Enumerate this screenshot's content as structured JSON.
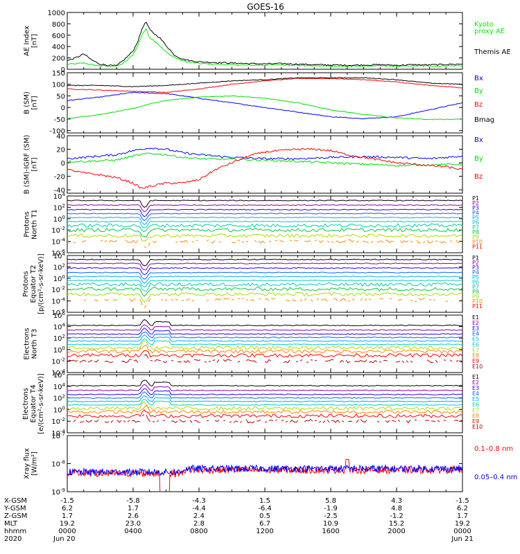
{
  "title": "GOES-16",
  "colors": {
    "black": "#000000",
    "red": "#ff0000",
    "green": "#00dd00",
    "blue": "#0000ff",
    "kyoto": "#00ee00"
  },
  "chart_data": [
    {
      "type": "line",
      "panel": "ae",
      "ylabel": [
        "AE Index",
        "[nT]"
      ],
      "yticks": [
        "1000",
        "800",
        "600",
        "400",
        "200",
        "0"
      ],
      "ylim": [
        0,
        1000
      ],
      "series": [
        {
          "name": "Kyoto proxy AE",
          "color": "#00ee00",
          "legend": [
            "Kyoto",
            "proxy AE"
          ],
          "points": [
            [
              0,
              90
            ],
            [
              0.5,
              95
            ],
            [
              1,
              110
            ],
            [
              1.5,
              80
            ],
            [
              2,
              60
            ],
            [
              2.5,
              55
            ],
            [
              3,
              50
            ],
            [
              3.5,
              120
            ],
            [
              4,
              260
            ],
            [
              4.3,
              420
            ],
            [
              4.6,
              650
            ],
            [
              4.8,
              700
            ],
            [
              5,
              560
            ],
            [
              5.3,
              500
            ],
            [
              5.6,
              420
            ],
            [
              6,
              300
            ],
            [
              6.5,
              210
            ],
            [
              7,
              150
            ],
            [
              7.5,
              120
            ],
            [
              8,
              100
            ],
            [
              9,
              90
            ],
            [
              10,
              80
            ],
            [
              11,
              70
            ],
            [
              12,
              75
            ],
            [
              13,
              80
            ],
            [
              14,
              70
            ],
            [
              15,
              60
            ],
            [
              16,
              55
            ],
            [
              17,
              50
            ],
            [
              18,
              55
            ],
            [
              19,
              60
            ],
            [
              20,
              50
            ],
            [
              21,
              60
            ],
            [
              22,
              55
            ],
            [
              23,
              60
            ],
            [
              24,
              60
            ]
          ]
        },
        {
          "name": "Themis AE",
          "color": "#000000",
          "legend": [
            "Themis AE"
          ],
          "points": [
            [
              0,
              150
            ],
            [
              0.5,
              200
            ],
            [
              1,
              270
            ],
            [
              1.5,
              160
            ],
            [
              2,
              90
            ],
            [
              2.5,
              70
            ],
            [
              3,
              60
            ],
            [
              3.5,
              180
            ],
            [
              4,
              320
            ],
            [
              4.3,
              500
            ],
            [
              4.6,
              760
            ],
            [
              4.8,
              830
            ],
            [
              5,
              700
            ],
            [
              5.3,
              620
            ],
            [
              5.6,
              560
            ],
            [
              6,
              420
            ],
            [
              6.5,
              250
            ],
            [
              7,
              180
            ],
            [
              7.5,
              150
            ],
            [
              8,
              130
            ],
            [
              9,
              120
            ],
            [
              10,
              110
            ],
            [
              11,
              100
            ],
            [
              12,
              95
            ],
            [
              13,
              100
            ],
            [
              14,
              90
            ],
            [
              15,
              80
            ],
            [
              16,
              75
            ],
            [
              17,
              70
            ],
            [
              18,
              75
            ],
            [
              19,
              80
            ],
            [
              20,
              70
            ],
            [
              21,
              80
            ],
            [
              22,
              75
            ],
            [
              23,
              85
            ],
            [
              24,
              90
            ]
          ]
        }
      ]
    },
    {
      "type": "line",
      "panel": "b",
      "ylabel": [
        "B (SM)",
        "[nT]"
      ],
      "yticks": [
        "150",
        "100",
        "50",
        "0",
        "-50",
        "-100"
      ],
      "ylim": [
        -110,
        150
      ],
      "series": [
        {
          "name": "Bx",
          "color": "#0000ff",
          "points": [
            [
              0,
              30
            ],
            [
              2,
              45
            ],
            [
              4,
              65
            ],
            [
              6,
              60
            ],
            [
              8,
              40
            ],
            [
              10,
              20
            ],
            [
              12,
              0
            ],
            [
              14,
              -20
            ],
            [
              16,
              -40
            ],
            [
              18,
              -48
            ],
            [
              20,
              -40
            ],
            [
              22,
              -10
            ],
            [
              24,
              20
            ]
          ]
        },
        {
          "name": "By",
          "color": "#00dd00",
          "points": [
            [
              0,
              -48
            ],
            [
              2,
              -30
            ],
            [
              4,
              -5
            ],
            [
              5,
              15
            ],
            [
              6,
              30
            ],
            [
              8,
              45
            ],
            [
              10,
              50
            ],
            [
              12,
              40
            ],
            [
              14,
              20
            ],
            [
              16,
              -10
            ],
            [
              18,
              -30
            ],
            [
              20,
              -45
            ],
            [
              22,
              -52
            ],
            [
              24,
              -50
            ]
          ]
        },
        {
          "name": "Bz",
          "color": "#ff0000",
          "points": [
            [
              0,
              80
            ],
            [
              2,
              75
            ],
            [
              4,
              70
            ],
            [
              6,
              65
            ],
            [
              8,
              80
            ],
            [
              10,
              100
            ],
            [
              12,
              115
            ],
            [
              14,
              125
            ],
            [
              16,
              125
            ],
            [
              18,
              120
            ],
            [
              20,
              110
            ],
            [
              22,
              95
            ],
            [
              24,
              85
            ]
          ]
        },
        {
          "name": "Bmag",
          "color": "#000000",
          "points": [
            [
              0,
              95
            ],
            [
              2,
              95
            ],
            [
              4,
              90
            ],
            [
              6,
              95
            ],
            [
              8,
              105
            ],
            [
              10,
              115
            ],
            [
              12,
              120
            ],
            [
              14,
              128
            ],
            [
              16,
              128
            ],
            [
              18,
              128
            ],
            [
              20,
              120
            ],
            [
              22,
              105
            ],
            [
              24,
              100
            ]
          ]
        }
      ]
    },
    {
      "type": "line",
      "panel": "db",
      "ylabel": [
        "B (SM)-IGRF (SM)",
        "[nT]"
      ],
      "yticks": [
        "40",
        "20",
        "0",
        "-20",
        "-40"
      ],
      "ylim": [
        -45,
        40
      ],
      "series": [
        {
          "name": "Bx",
          "color": "#0000ff",
          "points": [
            [
              0,
              6
            ],
            [
              1,
              8
            ],
            [
              2,
              10
            ],
            [
              3,
              12
            ],
            [
              4,
              18
            ],
            [
              5,
              22
            ],
            [
              6,
              20
            ],
            [
              7,
              15
            ],
            [
              8,
              12
            ],
            [
              10,
              8
            ],
            [
              12,
              6
            ],
            [
              14,
              6
            ],
            [
              16,
              8
            ],
            [
              18,
              9
            ],
            [
              20,
              8
            ],
            [
              22,
              6
            ],
            [
              24,
              10
            ]
          ]
        },
        {
          "name": "By",
          "color": "#00dd00",
          "points": [
            [
              0,
              2
            ],
            [
              1,
              2
            ],
            [
              2,
              3
            ],
            [
              3,
              4
            ],
            [
              4,
              10
            ],
            [
              5,
              14
            ],
            [
              6,
              12
            ],
            [
              7,
              8
            ],
            [
              8,
              6
            ],
            [
              10,
              5
            ],
            [
              12,
              4
            ],
            [
              14,
              2
            ],
            [
              16,
              0
            ],
            [
              18,
              -2
            ],
            [
              20,
              -4
            ],
            [
              22,
              -3
            ],
            [
              24,
              -2
            ]
          ]
        },
        {
          "name": "Bz",
          "color": "#ff0000",
          "points": [
            [
              0,
              -10
            ],
            [
              1,
              -15
            ],
            [
              2,
              -18
            ],
            [
              3,
              -22
            ],
            [
              4,
              -30
            ],
            [
              4.5,
              -38
            ],
            [
              5,
              -35
            ],
            [
              6,
              -30
            ],
            [
              7,
              -30
            ],
            [
              8,
              -25
            ],
            [
              9,
              -10
            ],
            [
              10,
              0
            ],
            [
              11,
              10
            ],
            [
              12,
              16
            ],
            [
              13,
              18
            ],
            [
              14,
              20
            ],
            [
              15,
              20
            ],
            [
              16,
              18
            ],
            [
              17,
              12
            ],
            [
              18,
              8
            ],
            [
              19,
              4
            ],
            [
              20,
              0
            ],
            [
              21,
              -2
            ],
            [
              22,
              -4
            ],
            [
              23,
              -6
            ],
            [
              24,
              -10
            ]
          ]
        }
      ]
    },
    {
      "type": "line",
      "panel": "p1",
      "ylabel": [
        "Protons",
        "North T1"
      ],
      "log": true,
      "ylim": [
        -6,
        4
      ],
      "yticks": [
        "10^4",
        "10^2",
        "10^0",
        "10^-2",
        "10^-4",
        "10^-6"
      ],
      "legend": [
        "P1",
        "P2",
        "P3",
        "P4",
        "P5",
        "P6",
        "P7",
        "P8",
        "P9",
        "P10",
        "P11"
      ],
      "legend_colors": [
        "#000000",
        "#8800aa",
        "#2200ff",
        "#0066ff",
        "#00aaff",
        "#00cccc",
        "#00ccaa",
        "#00cc44",
        "#aadd00",
        "#ff8800",
        "#ff0000"
      ],
      "levels": [
        3.2,
        2.4,
        1.6,
        0.9,
        0.2,
        -0.5,
        -1.2,
        -2.0,
        -3.0,
        -4.0,
        -5.0
      ]
    },
    {
      "type": "line",
      "panel": "p2",
      "ylabel": [
        "Protons",
        "Equator T2",
        "[p/(cm²-s-sr-keV)]"
      ],
      "log": true,
      "ylim": [
        -6,
        4
      ],
      "yticks": [
        "10^4",
        "10^2",
        "10^0",
        "10^-2",
        "10^-4",
        "10^-6"
      ],
      "legend": [
        "P1",
        "P2",
        "P3",
        "P4",
        "P5",
        "P6",
        "P7",
        "P8",
        "P9",
        "P10",
        "P11"
      ],
      "legend_colors": [
        "#000000",
        "#8800aa",
        "#2200ff",
        "#0066ff",
        "#00aaff",
        "#00cccc",
        "#00ccaa",
        "#00cc44",
        "#aadd00",
        "#ff8800",
        "#ff0000"
      ],
      "levels": [
        3.3,
        2.6,
        1.8,
        1.0,
        0.3,
        -0.4,
        -1.1,
        -1.9,
        -2.8,
        -3.8,
        -4.8
      ]
    },
    {
      "type": "line",
      "panel": "e1",
      "ylabel": [
        "Electrons",
        "North T3"
      ],
      "log": true,
      "ylim": [
        -4,
        6
      ],
      "yticks": [
        "10^6",
        "10^4",
        "10^2",
        "10^0",
        "10^-2",
        "10^-4"
      ],
      "legend": [
        "E1",
        "E2",
        "E3",
        "E4",
        "E5",
        "E6",
        "E7",
        "E8",
        "E9",
        "E10"
      ],
      "legend_colors": [
        "#000000",
        "#8800aa",
        "#2200ff",
        "#0066ff",
        "#00aaff",
        "#00cccc",
        "#aadd00",
        "#ff8800",
        "#ff0000",
        "#aa0000"
      ],
      "levels": [
        4.2,
        3.4,
        2.7,
        2.1,
        1.5,
        0.9,
        0.3,
        -0.3,
        -1.0,
        -2.0
      ]
    },
    {
      "type": "line",
      "panel": "e2",
      "ylabel": [
        "Electrons",
        "Equator T4",
        "[e/(cm²-s-sr-keV)]"
      ],
      "log": true,
      "ylim": [
        -4,
        6
      ],
      "yticks": [
        "10^6",
        "10^4",
        "10^2",
        "10^0",
        "10^-2",
        "10^-4"
      ],
      "legend": [
        "E1",
        "E2",
        "E3",
        "E4",
        "E5",
        "E6",
        "E7",
        "E8",
        "E9",
        "E10"
      ],
      "legend_colors": [
        "#000000",
        "#8800aa",
        "#2200ff",
        "#0066ff",
        "#00aaff",
        "#00cccc",
        "#aadd00",
        "#ff8800",
        "#ff0000",
        "#aa0000"
      ],
      "levels": [
        4.1,
        3.3,
        2.6,
        2.0,
        1.4,
        0.8,
        0.2,
        -0.4,
        -1.1,
        -2.0
      ]
    },
    {
      "type": "line",
      "panel": "xray",
      "ylabel": [
        "Xray flux",
        "[W/m²]"
      ],
      "log": true,
      "ylim": [
        -9,
        -7
      ],
      "yticks": [
        "10^-7",
        "10^-8",
        "10^-9"
      ],
      "series": [
        {
          "name": "0.1–0.8 nm",
          "color": "#ff0000",
          "level": -8.35
        },
        {
          "name": "0.05–0.4 nm",
          "color": "#0000ff",
          "level": -8.3
        }
      ]
    }
  ],
  "xaxis": {
    "row_labels": [
      "X-GSM",
      "Y-GSM",
      "Z-GSM",
      "MLT",
      "hhmm",
      "2020"
    ],
    "columns": [
      [
        "-1.5",
        "6.2",
        "1.7",
        "19.2",
        "0000",
        "Jun 20"
      ],
      [
        "-5.8",
        "1.7",
        "2.6",
        "23.0",
        "0400",
        ""
      ],
      [
        "-4.3",
        "-4.4",
        "2.4",
        "2.8",
        "0800",
        ""
      ],
      [
        "1.5",
        "-6.4",
        "0.5",
        "6.7",
        "1200",
        ""
      ],
      [
        "5.8",
        "-1.9",
        "-2.5",
        "10.9",
        "1600",
        ""
      ],
      [
        "4.3",
        "4.8",
        "-1.2",
        "15.2",
        "2000",
        ""
      ],
      [
        "-1.5",
        "6.2",
        "1.7",
        "19.2",
        "0000",
        "Jun 21"
      ]
    ]
  }
}
